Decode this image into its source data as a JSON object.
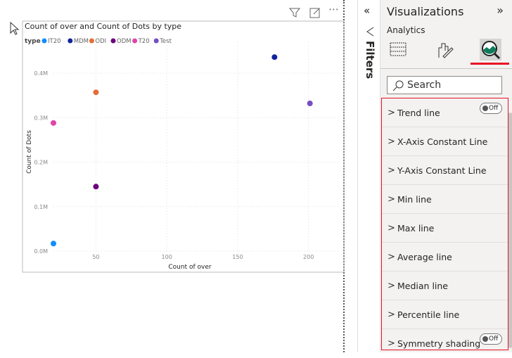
{
  "visual": {
    "title": "Count of over and Count of Dots by type",
    "legend_title": "type"
  },
  "chart_data": {
    "type": "scatter",
    "title": "Count of over and Count of Dots by type",
    "xlabel": "Count of over",
    "ylabel": "Count of Dots",
    "x_ticks": [
      "50",
      "100",
      "150",
      "200"
    ],
    "y_ticks": [
      "0.0M",
      "0.1M",
      "0.2M",
      "0.3M",
      "0.4M"
    ],
    "xlim": [
      20,
      222
    ],
    "ylim": [
      0,
      0.46
    ],
    "grid": true,
    "legend_position": "top-left",
    "series": [
      {
        "name": "IT20",
        "color": "#118DFF",
        "x": 20,
        "y": 17000
      },
      {
        "name": "MDM",
        "color": "#12239E",
        "x": 176,
        "y": 436000
      },
      {
        "name": "ODI",
        "color": "#E66C37",
        "x": 50,
        "y": 357000
      },
      {
        "name": "ODM",
        "color": "#6B007B",
        "x": 50,
        "y": 145000
      },
      {
        "name": "T20",
        "color": "#E044A7",
        "x": 20,
        "y": 288000
      },
      {
        "name": "Test",
        "color": "#744EC2",
        "x": 201,
        "y": 332000
      }
    ]
  },
  "filters": {
    "label": "Filters"
  },
  "panel": {
    "title": "Visualizations",
    "subtitle": "Analytics",
    "search_placeholder": "Search",
    "items": [
      {
        "label": "Trend line",
        "toggle": "Off"
      },
      {
        "label": "X-Axis Constant Line"
      },
      {
        "label": "Y-Axis Constant Line"
      },
      {
        "label": "Min line"
      },
      {
        "label": "Max line"
      },
      {
        "label": "Average line"
      },
      {
        "label": "Median line"
      },
      {
        "label": "Percentile line"
      },
      {
        "label": "Symmetry shading",
        "toggle": "Off"
      }
    ],
    "accent": "#e81123"
  }
}
